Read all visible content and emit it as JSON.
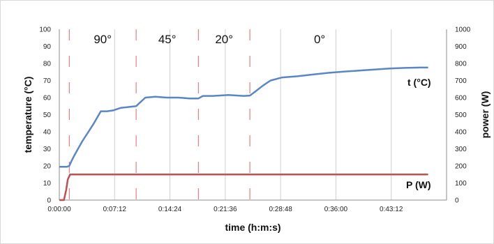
{
  "chart_data": {
    "type": "line",
    "xlabel": "time (h:m:s)",
    "ylabel": "temperature (°C)",
    "y2label": "power (W)",
    "x_tick_labels": [
      "0:00:00",
      "0:07:12",
      "0:14:24",
      "0:21:36",
      "0:28:48",
      "0:36:00",
      "0:43:12"
    ],
    "x_tick_minutes": [
      0,
      7.2,
      14.4,
      21.6,
      28.8,
      36,
      43.2
    ],
    "xlim_minutes": [
      0,
      50.4
    ],
    "ylim": [
      0,
      100
    ],
    "y_ticks": [
      0,
      10,
      20,
      30,
      40,
      50,
      60,
      70,
      80,
      90,
      100
    ],
    "y2lim": [
      0,
      1000
    ],
    "y2_ticks": [
      0,
      100,
      200,
      300,
      400,
      500,
      600,
      700,
      800,
      900,
      1000
    ],
    "grid": "vertical",
    "angle_regions": [
      {
        "label": "90°",
        "start_minutes": 1.3,
        "end_minutes": 10.0
      },
      {
        "label": "45°",
        "start_minutes": 10.0,
        "end_minutes": 18.1
      },
      {
        "label": "20°",
        "start_minutes": 18.1,
        "end_minutes": 24.8
      },
      {
        "label": "0°",
        "start_minutes": 24.8,
        "end_minutes": 50.4
      }
    ],
    "series": [
      {
        "name": "t (°C)",
        "axis": "left",
        "color": "#5b86c5",
        "x_minutes": [
          0,
          0.5,
          1.0,
          1.3,
          1.6,
          2.0,
          2.5,
          3.0,
          3.8,
          4.5,
          5.4,
          6.2,
          7.0,
          8.0,
          9.0,
          10.0,
          10.6,
          11.2,
          12.5,
          14.0,
          15.5,
          17.0,
          18.1,
          18.7,
          20.0,
          22.0,
          24.0,
          24.8,
          25.5,
          26.5,
          27.5,
          29.0,
          31.0,
          33.0,
          35.0,
          37.0,
          39.0,
          41.0,
          43.0,
          45.0,
          47.0,
          48.0
        ],
        "values": [
          19.5,
          19.5,
          19.5,
          20,
          23,
          26.5,
          30.5,
          34.5,
          40,
          45,
          52,
          52,
          52.5,
          54,
          54.5,
          55,
          57.5,
          60,
          60.5,
          60,
          60,
          59.5,
          59.5,
          61,
          61,
          61.5,
          61,
          61.2,
          63.5,
          67,
          70,
          71.8,
          72.5,
          73.5,
          74.5,
          75.2,
          75.8,
          76.4,
          77,
          77.4,
          77.6,
          77.6
        ]
      },
      {
        "name": "P (W)",
        "axis": "right",
        "color": "#c0504d",
        "x_minutes": [
          0,
          0.3,
          0.6,
          0.9,
          1.1,
          1.4,
          3.0,
          10.0,
          30.0,
          48.0
        ],
        "values": [
          0,
          0,
          0,
          60,
          120,
          150,
          150,
          150,
          150,
          150
        ]
      }
    ]
  }
}
